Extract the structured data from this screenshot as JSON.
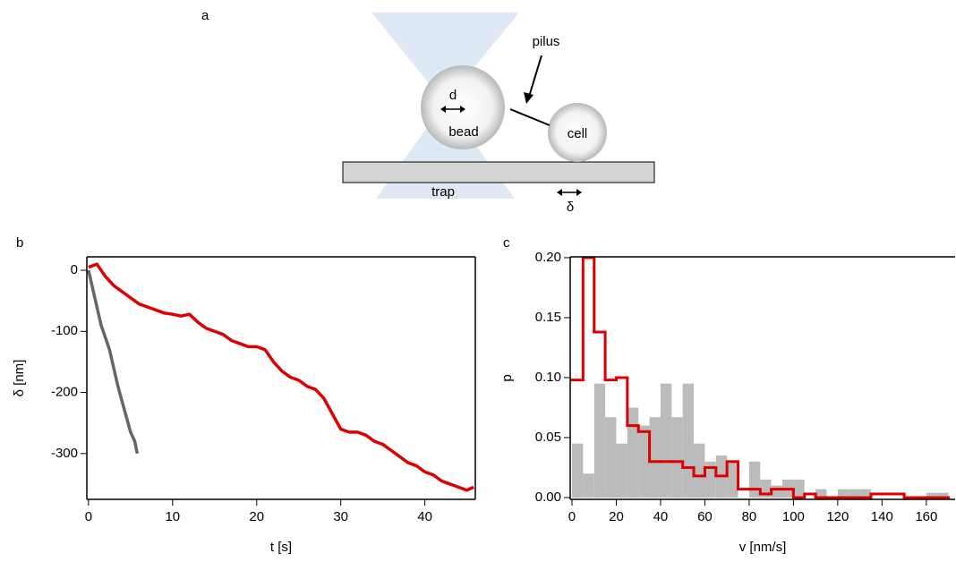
{
  "diagram": {
    "label": "a",
    "pilus": "pilus",
    "d": "d",
    "bead": "bead",
    "cell": "cell",
    "trap": "trap",
    "delta": "δ"
  },
  "chart_data": [
    {
      "type": "line",
      "label": "b",
      "xlabel": "t [s]",
      "ylabel": "δ [nm]",
      "xlim": [
        -0.2,
        46
      ],
      "ylim": [
        -375,
        22
      ],
      "xticks": [
        0,
        10,
        20,
        30,
        40
      ],
      "yticks": [
        0,
        -100,
        -200,
        -300
      ],
      "series": [
        {
          "color": "#666666",
          "x": [
            0,
            0.5,
            1,
            1.5,
            2,
            2.5,
            3,
            3.5,
            4,
            4.5,
            5,
            5.5,
            5.8
          ],
          "values": [
            0,
            -30,
            -60,
            -90,
            -110,
            -130,
            -160,
            -190,
            -215,
            -240,
            -265,
            -280,
            -300
          ]
        },
        {
          "color": "#dd0000",
          "x": [
            0,
            1,
            2,
            3,
            4,
            5,
            6,
            7,
            8,
            9,
            10,
            11,
            12,
            13,
            14,
            15,
            16,
            17,
            18,
            19,
            20,
            21,
            22,
            23,
            24,
            25,
            26,
            27,
            28,
            29,
            30,
            31,
            32,
            33,
            34,
            35,
            36,
            37,
            38,
            39,
            40,
            41,
            42,
            43,
            44,
            45,
            45.8
          ],
          "values": [
            5,
            10,
            -10,
            -25,
            -35,
            -45,
            -55,
            -60,
            -65,
            -70,
            -72,
            -75,
            -72,
            -85,
            -95,
            -100,
            -105,
            -115,
            -120,
            -125,
            -125,
            -130,
            -150,
            -165,
            -175,
            -180,
            -190,
            -195,
            -210,
            -235,
            -260,
            -265,
            -265,
            -270,
            -280,
            -285,
            -295,
            -305,
            -315,
            -320,
            -330,
            -335,
            -345,
            -350,
            -355,
            -360,
            -355
          ]
        }
      ]
    },
    {
      "type": "histogram",
      "label": "c",
      "xlabel": "v [nm/s]",
      "ylabel": "p",
      "xlim": [
        -0.8,
        173
      ],
      "ylim": [
        -0.0015,
        0.2007
      ],
      "xticks": [
        0,
        20,
        40,
        60,
        80,
        100,
        120,
        140,
        160
      ],
      "yticks": [
        {
          "value": 0,
          "label": "0.00"
        },
        {
          "value": 0.05,
          "label": "0.05"
        },
        {
          "value": 0.1,
          "label": "0.10"
        },
        {
          "value": 0.15,
          "label": "0.15"
        },
        {
          "value": 0.2,
          "label": "0.20"
        }
      ],
      "bins": [
        0,
        5,
        10,
        15,
        20,
        25,
        30,
        35,
        40,
        45,
        50,
        55,
        60,
        65,
        70,
        75,
        80,
        85,
        90,
        95,
        100,
        105,
        110,
        115,
        120,
        125,
        130,
        135,
        140,
        145,
        150,
        155,
        160,
        165,
        170
      ],
      "series": [
        {
          "style": "bars",
          "color": "#bbbbbb",
          "values": [
            0.045,
            0.02,
            0.095,
            0.067,
            0.045,
            0.075,
            0.06,
            0.067,
            0.095,
            0.067,
            0.095,
            0.045,
            0.03,
            0.035,
            0.03,
            0,
            0.03,
            0.015,
            0.01,
            0.015,
            0.015,
            0,
            0.007,
            0,
            0.007,
            0.007,
            0.007,
            0,
            0,
            0,
            0,
            0,
            0.004,
            0.004
          ]
        },
        {
          "style": "step",
          "color": "#dd0000",
          "values": [
            0.098,
            0.2,
            0.138,
            0.098,
            0.1,
            0.06,
            0.055,
            0.03,
            0.03,
            0.03,
            0.025,
            0.018,
            0.025,
            0.018,
            0.03,
            0.007,
            0.007,
            0.003,
            0.007,
            0.007,
            0,
            0.003,
            0,
            0,
            0,
            0,
            0,
            0.003,
            0.003,
            0.003,
            0,
            0,
            0,
            0
          ]
        }
      ]
    }
  ]
}
